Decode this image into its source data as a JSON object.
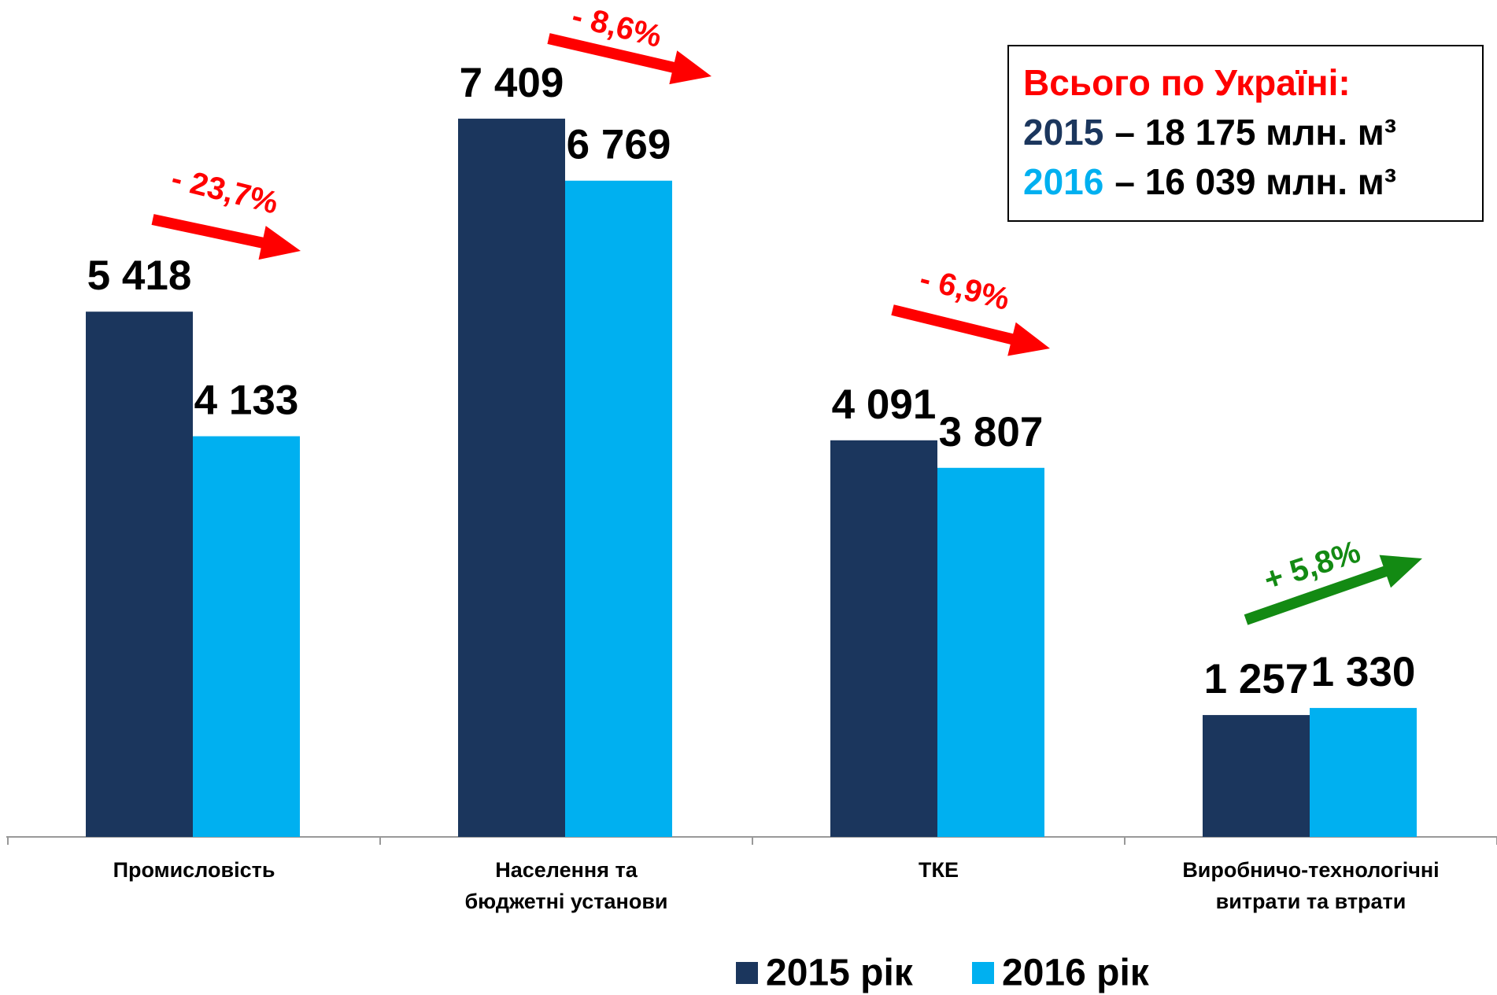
{
  "chart_data": {
    "type": "bar",
    "categories": [
      "Промисловість",
      "Населення та\nбюджетні установи",
      "ТКЕ",
      "Виробничо-технологічні\nвитрати та втрати"
    ],
    "series": [
      {
        "name": "2015 рік",
        "color": "#1b365d",
        "values": [
          5418,
          7409,
          4091,
          1257
        ],
        "value_labels": [
          "5 418",
          "7 409",
          "4 091",
          "1 257"
        ]
      },
      {
        "name": "2016 рік",
        "color": "#00b0f0",
        "values": [
          4133,
          6769,
          3807,
          1330
        ],
        "value_labels": [
          "4 133",
          "6 769",
          "3 807",
          "1 330"
        ]
      }
    ],
    "ylim": [
      0,
      8000
    ],
    "annotations": [
      {
        "text": "- 23,7%",
        "color": "#ff0000"
      },
      {
        "text": "- 8,6%",
        "color": "#ff0000"
      },
      {
        "text": "- 6,9%",
        "color": "#ff0000"
      },
      {
        "text": "+ 5,8%",
        "color": "#138a13"
      }
    ],
    "summary_box": {
      "title": "Всього по Україні:",
      "lines": [
        {
          "year": "2015",
          "text": "– 18 175 млн. м³"
        },
        {
          "year": "2016",
          "text": "– 16 039 млн. м³"
        }
      ]
    }
  }
}
